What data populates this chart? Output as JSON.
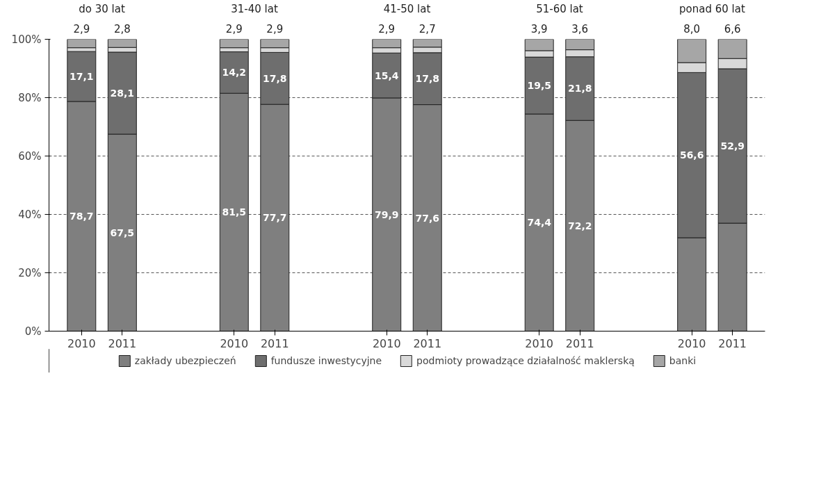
{
  "chart_data": {
    "type": "bar",
    "stacked": true,
    "categories": [
      "2010",
      "2011",
      "2010",
      "2011",
      "2010",
      "2011",
      "2010",
      "2011",
      "2010",
      "2011"
    ],
    "annotations": [
      "do 30 lat",
      "31-40 lat",
      "41-50 lat",
      "51-60 lat",
      "ponad 60 lat"
    ],
    "series": [
      {
        "name": "zakłady ubezpieczeń",
        "color": "#7f7f7f",
        "values": [
          78.7,
          67.5,
          81.5,
          77.7,
          79.9,
          77.6,
          74.4,
          72.2,
          32.0,
          37.0
        ],
        "value_labels": [
          "78,7",
          "67,5",
          "81,5",
          "77,7",
          "79,9",
          "77,6",
          "74,4",
          "72,2",
          null,
          null
        ]
      },
      {
        "name": "fundusze inwestycyjne",
        "color": "#6e6e6e",
        "values": [
          17.1,
          28.1,
          14.2,
          17.8,
          15.4,
          17.8,
          19.5,
          21.8,
          56.6,
          52.9
        ],
        "value_labels": [
          "17,1",
          "28,1",
          "14,2",
          "17,8",
          "15,4",
          "17,8",
          "19,5",
          "21,8",
          "56,6",
          "52,9"
        ]
      },
      {
        "name": "podmioty prowadzące działalność maklerską",
        "color": "#d9d9d9",
        "values": [
          1.3,
          1.6,
          1.4,
          1.6,
          1.8,
          1.9,
          2.2,
          2.4,
          3.4,
          3.5
        ]
      },
      {
        "name": "banki",
        "color": "#a6a6a6",
        "values": [
          2.9,
          2.8,
          2.9,
          2.9,
          2.9,
          2.7,
          3.9,
          3.6,
          8.0,
          6.6
        ],
        "value_labels": [
          "2,9",
          "2,8",
          "2,9",
          "2,9",
          "2,9",
          "2,7",
          "3,9",
          "3,6",
          "8,0",
          "6,6"
        ]
      }
    ],
    "ylim": [
      0,
      100
    ],
    "yticks": [
      {
        "value": 0,
        "label": "0%"
      },
      {
        "value": 20,
        "label": "20%"
      },
      {
        "value": 40,
        "label": "40%"
      },
      {
        "value": 60,
        "label": "60%"
      },
      {
        "value": 80,
        "label": "80%"
      },
      {
        "value": 100,
        "label": "100%"
      }
    ],
    "grid": "y",
    "legend": "bottom"
  }
}
